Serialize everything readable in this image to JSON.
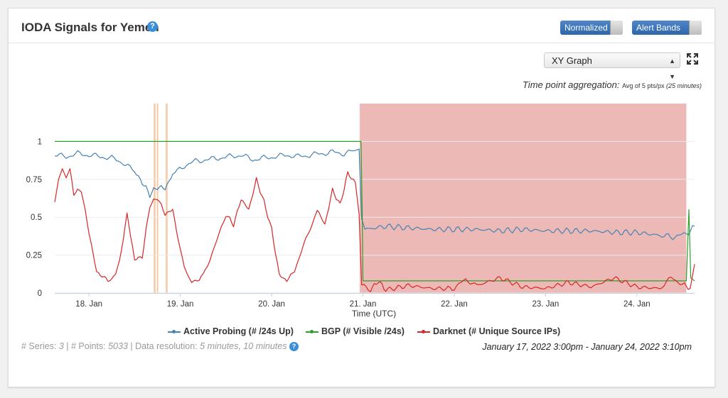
{
  "panel": {
    "title": "IODA Signals for Yemen",
    "help_icon": "question-circle-icon",
    "toggles": {
      "normalized": "Normalized",
      "alert_bands": "Alert Bands"
    },
    "view_select": "XY Graph",
    "aggregation_label": "Time point aggregation:",
    "aggregation_value": "Avg of 5 pts/px",
    "aggregation_minutes": "(25 minutes)",
    "meta": {
      "series_label": "# Series:",
      "series_count": "3",
      "points_label": "# Points:",
      "points_count": "5033",
      "resolution_label": "Data resolution:",
      "resolution_value": "5 minutes, 10 minutes"
    },
    "date_range": "January 17, 2022 3:00pm - January 24, 2022 3:10pm"
  },
  "colors": {
    "active": "#4682b4",
    "bgp": "#2ca02c",
    "darknet": "#d62728",
    "alert_band": "#e8a8a4",
    "highlight": "#f6cba9",
    "accent": "#3a8fd8"
  },
  "chart_data": {
    "type": "line",
    "xlabel": "Time (UTC)",
    "x_start": "2022-01-17 15:00",
    "x_end": "2022-01-24 15:10",
    "x_ticks": [
      {
        "t": "2022-01-18 00:00",
        "label": "18. Jan"
      },
      {
        "t": "2022-01-19 00:00",
        "label": "19. Jan"
      },
      {
        "t": "2022-01-20 00:00",
        "label": "20. Jan"
      },
      {
        "t": "2022-01-21 00:00",
        "label": "21. Jan"
      },
      {
        "t": "2022-01-22 00:00",
        "label": "22. Jan"
      },
      {
        "t": "2022-01-23 00:00",
        "label": "23. Jan"
      },
      {
        "t": "2022-01-24 00:00",
        "label": "24. Jan"
      }
    ],
    "y_ticks": [
      {
        "v": 0,
        "label": "0"
      },
      {
        "v": 0.25,
        "label": "0.25"
      },
      {
        "v": 0.5,
        "label": "0.5"
      },
      {
        "v": 0.75,
        "label": "0.75"
      },
      {
        "v": 1,
        "label": "1"
      }
    ],
    "ylim": [
      0,
      1.25
    ],
    "alert_band": {
      "start": "2022-01-20 23:00",
      "end": "2022-01-24 13:00"
    },
    "highlights": [
      {
        "start": "2022-01-18 17:00",
        "end": "2022-01-18 17:30"
      },
      {
        "start": "2022-01-18 17:50",
        "end": "2022-01-18 18:10"
      },
      {
        "start": "2022-01-18 20:10",
        "end": "2022-01-18 20:40"
      }
    ],
    "series": [
      {
        "name": "Active Probing (# /24s Up)",
        "key": "active",
        "points": [
          [
            "2022-01-17 15:00",
            0.91
          ],
          [
            "2022-01-17 18:00",
            0.9
          ],
          [
            "2022-01-17 21:00",
            0.92
          ],
          [
            "2022-01-18 00:00",
            0.91
          ],
          [
            "2022-01-18 03:00",
            0.9
          ],
          [
            "2022-01-18 06:00",
            0.89
          ],
          [
            "2022-01-18 09:00",
            0.86
          ],
          [
            "2022-01-18 12:00",
            0.8
          ],
          [
            "2022-01-18 14:00",
            0.73
          ],
          [
            "2022-01-18 16:00",
            0.65
          ],
          [
            "2022-01-18 18:00",
            0.7
          ],
          [
            "2022-01-18 20:00",
            0.69
          ],
          [
            "2022-01-18 22:00",
            0.78
          ],
          [
            "2022-01-19 01:00",
            0.84
          ],
          [
            "2022-01-19 04:00",
            0.87
          ],
          [
            "2022-01-19 07:00",
            0.88
          ],
          [
            "2022-01-19 10:00",
            0.89
          ],
          [
            "2022-01-19 13:00",
            0.9
          ],
          [
            "2022-01-19 16:00",
            0.91
          ],
          [
            "2022-01-19 19:00",
            0.88
          ],
          [
            "2022-01-19 22:00",
            0.89
          ],
          [
            "2022-01-20 01:00",
            0.9
          ],
          [
            "2022-01-20 04:00",
            0.91
          ],
          [
            "2022-01-20 07:00",
            0.9
          ],
          [
            "2022-01-20 10:00",
            0.91
          ],
          [
            "2022-01-20 13:00",
            0.92
          ],
          [
            "2022-01-20 16:00",
            0.93
          ],
          [
            "2022-01-20 19:00",
            0.92
          ],
          [
            "2022-01-20 22:00",
            0.94
          ],
          [
            "2022-01-20 23:00",
            0.95
          ],
          [
            "2022-01-20 23:40",
            0.49
          ],
          [
            "2022-01-21 00:30",
            0.42
          ],
          [
            "2022-01-21 06:00",
            0.44
          ],
          [
            "2022-01-21 12:00",
            0.43
          ],
          [
            "2022-01-21 18:00",
            0.42
          ],
          [
            "2022-01-22 00:00",
            0.42
          ],
          [
            "2022-01-22 06:00",
            0.42
          ],
          [
            "2022-01-22 12:00",
            0.41
          ],
          [
            "2022-01-22 18:00",
            0.42
          ],
          [
            "2022-01-23 00:00",
            0.41
          ],
          [
            "2022-01-23 06:00",
            0.41
          ],
          [
            "2022-01-23 12:00",
            0.41
          ],
          [
            "2022-01-23 18:00",
            0.4
          ],
          [
            "2022-01-24 00:00",
            0.4
          ],
          [
            "2022-01-24 06:00",
            0.38
          ],
          [
            "2022-01-24 10:00",
            0.37
          ],
          [
            "2022-01-24 13:00",
            0.39
          ],
          [
            "2022-01-24 15:10",
            0.44
          ]
        ]
      },
      {
        "name": "BGP (# Visible /24s)",
        "key": "bgp",
        "points": [
          [
            "2022-01-17 15:00",
            1.0
          ],
          [
            "2022-01-20 23:30",
            1.0
          ],
          [
            "2022-01-20 23:50",
            0.5
          ],
          [
            "2022-01-21 00:00",
            0.08
          ],
          [
            "2022-01-24 13:00",
            0.08
          ],
          [
            "2022-01-24 13:40",
            0.55
          ],
          [
            "2022-01-24 14:10",
            0.1
          ],
          [
            "2022-01-24 15:10",
            0.08
          ]
        ]
      },
      {
        "name": "Darknet (# Unique Source IPs)",
        "key": "darknet",
        "points": [
          [
            "2022-01-17 15:00",
            0.6
          ],
          [
            "2022-01-17 16:00",
            0.75
          ],
          [
            "2022-01-17 17:00",
            0.82
          ],
          [
            "2022-01-17 18:00",
            0.76
          ],
          [
            "2022-01-17 19:00",
            0.82
          ],
          [
            "2022-01-17 20:00",
            0.66
          ],
          [
            "2022-01-17 22:00",
            0.68
          ],
          [
            "2022-01-18 00:00",
            0.4
          ],
          [
            "2022-01-18 02:00",
            0.14
          ],
          [
            "2022-01-18 04:00",
            0.1
          ],
          [
            "2022-01-18 06:00",
            0.08
          ],
          [
            "2022-01-18 08:00",
            0.2
          ],
          [
            "2022-01-18 10:00",
            0.52
          ],
          [
            "2022-01-18 12:00",
            0.22
          ],
          [
            "2022-01-18 14:00",
            0.24
          ],
          [
            "2022-01-18 16:00",
            0.58
          ],
          [
            "2022-01-18 18:00",
            0.63
          ],
          [
            "2022-01-18 20:00",
            0.52
          ],
          [
            "2022-01-18 22:00",
            0.55
          ],
          [
            "2022-01-19 00:00",
            0.28
          ],
          [
            "2022-01-19 02:00",
            0.1
          ],
          [
            "2022-01-19 04:00",
            0.07
          ],
          [
            "2022-01-19 06:00",
            0.12
          ],
          [
            "2022-01-19 09:00",
            0.3
          ],
          [
            "2022-01-19 12:00",
            0.52
          ],
          [
            "2022-01-19 14:00",
            0.45
          ],
          [
            "2022-01-19 16:00",
            0.62
          ],
          [
            "2022-01-19 18:00",
            0.55
          ],
          [
            "2022-01-19 20:00",
            0.75
          ],
          [
            "2022-01-19 22:00",
            0.6
          ],
          [
            "2022-01-20 00:00",
            0.42
          ],
          [
            "2022-01-20 02:00",
            0.12
          ],
          [
            "2022-01-20 04:00",
            0.08
          ],
          [
            "2022-01-20 06:00",
            0.15
          ],
          [
            "2022-01-20 09:00",
            0.35
          ],
          [
            "2022-01-20 12:00",
            0.55
          ],
          [
            "2022-01-20 14:00",
            0.45
          ],
          [
            "2022-01-20 16:00",
            0.68
          ],
          [
            "2022-01-20 18:00",
            0.58
          ],
          [
            "2022-01-20 20:00",
            0.79
          ],
          [
            "2022-01-20 22:00",
            0.73
          ],
          [
            "2022-01-20 23:00",
            0.52
          ],
          [
            "2022-01-20 23:40",
            0.05
          ],
          [
            "2022-01-21 02:00",
            0.02
          ],
          [
            "2022-01-21 04:00",
            0.08
          ],
          [
            "2022-01-21 06:00",
            0.02
          ],
          [
            "2022-01-21 12:00",
            0.05
          ],
          [
            "2022-01-21 18:00",
            0.03
          ],
          [
            "2022-01-22 00:00",
            0.03
          ],
          [
            "2022-01-22 03:00",
            0.09
          ],
          [
            "2022-01-22 06:00",
            0.05
          ],
          [
            "2022-01-22 12:00",
            0.1
          ],
          [
            "2022-01-22 18:00",
            0.04
          ],
          [
            "2022-01-23 00:00",
            0.03
          ],
          [
            "2022-01-23 06:00",
            0.07
          ],
          [
            "2022-01-23 12:00",
            0.04
          ],
          [
            "2022-01-23 18:00",
            0.1
          ],
          [
            "2022-01-24 00:00",
            0.04
          ],
          [
            "2022-01-24 06:00",
            0.03
          ],
          [
            "2022-01-24 09:00",
            0.1
          ],
          [
            "2022-01-24 12:00",
            0.06
          ],
          [
            "2022-01-24 14:00",
            0.03
          ],
          [
            "2022-01-24 15:10",
            0.19
          ]
        ]
      }
    ]
  }
}
